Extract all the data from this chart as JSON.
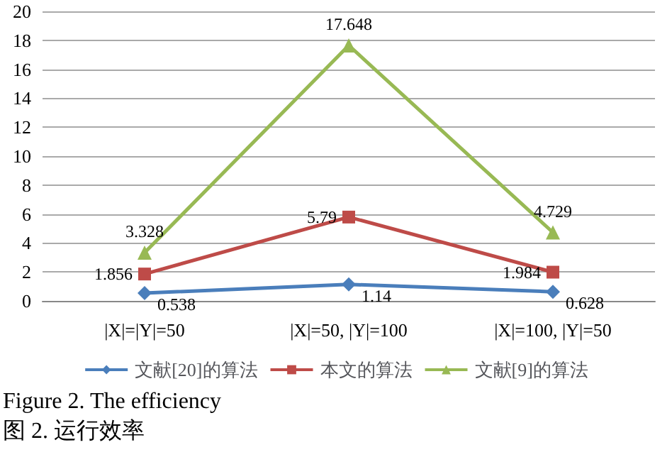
{
  "chart_data": {
    "type": "line",
    "categories": [
      "|X|=|Y|=50",
      "|X|=50, |Y|=100",
      "|X|=100, |Y|=50"
    ],
    "series": [
      {
        "name": "文献[20]的算法",
        "color": "#4a7ebb",
        "marker": "diamond",
        "values": [
          0.538,
          1.14,
          0.628
        ]
      },
      {
        "name": "本文的算法",
        "color": "#be4b48",
        "marker": "square",
        "values": [
          1.856,
          5.79,
          1.984
        ]
      },
      {
        "name": "文献[9]的算法",
        "color": "#98b954",
        "marker": "triangle",
        "values": [
          3.328,
          17.648,
          4.729
        ]
      }
    ],
    "ylim": [
      0,
      20
    ],
    "yticks": [
      0,
      2,
      4,
      6,
      8,
      10,
      12,
      14,
      16,
      18,
      20
    ],
    "grid": "y",
    "legend": "bottom",
    "data_labels": true,
    "annotations": [
      "Figure 2. The efficiency",
      "图 2. 运行效率"
    ]
  }
}
